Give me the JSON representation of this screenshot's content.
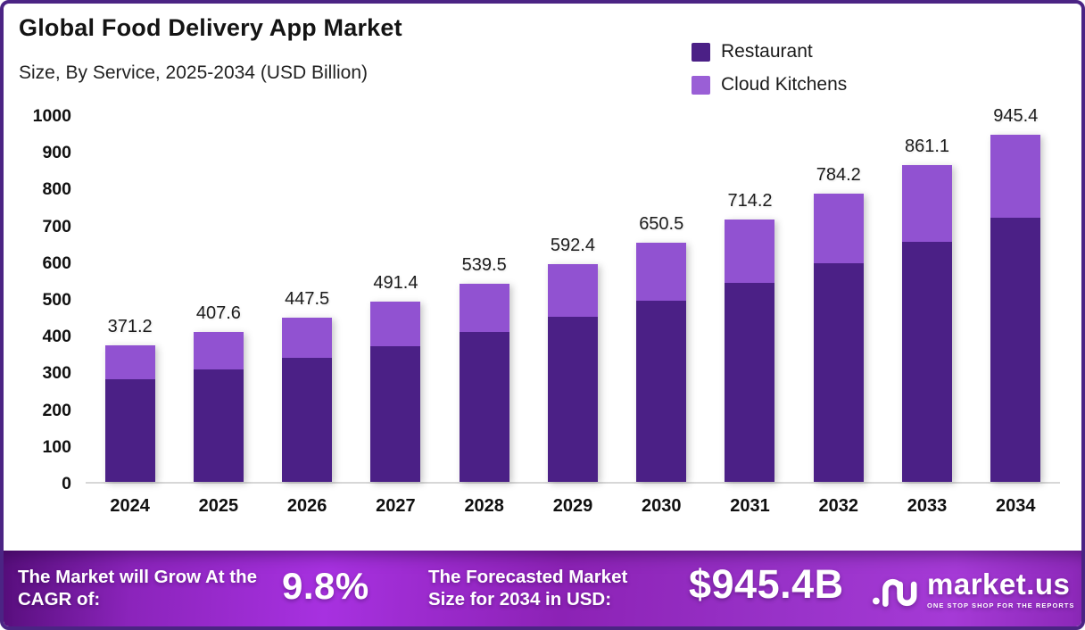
{
  "header": {
    "title": "Global Food Delivery App Market",
    "subtitle": "Size, By Service, 2025-2034 (USD Billion)"
  },
  "legend": {
    "items": [
      {
        "label": "Restaurant",
        "color": "#4b2086"
      },
      {
        "label": "Cloud Kitchens",
        "color": "#9a5fd6"
      }
    ]
  },
  "chart_data": {
    "type": "bar",
    "stacked": true,
    "title": "Global Food Delivery App Market Size, By Service, 2025-2034 (USD Billion)",
    "categories": [
      "2024",
      "2025",
      "2026",
      "2027",
      "2028",
      "2029",
      "2030",
      "2031",
      "2032",
      "2033",
      "2034"
    ],
    "series": [
      {
        "name": "Restaurant",
        "color": "#4b2086",
        "values": [
          279.0,
          306.0,
          337.0,
          369.0,
          408.0,
          449.0,
          493.0,
          541.0,
          595.0,
          653.0,
          718.0
        ],
        "note": "estimated from bar segment heights"
      },
      {
        "name": "Cloud Kitchens",
        "color": "#9152d1",
        "values": [
          92.2,
          101.6,
          110.5,
          122.4,
          131.5,
          143.4,
          157.5,
          173.2,
          189.2,
          208.1,
          227.4
        ],
        "note": "estimated from bar segment heights"
      }
    ],
    "totals": [
      371.2,
      407.6,
      447.5,
      491.4,
      539.5,
      592.4,
      650.5,
      714.2,
      784.2,
      861.1,
      945.4
    ],
    "total_labels": [
      "371.2",
      "407.6",
      "447.5",
      "491.4",
      "539.5",
      "592.4",
      "650.5",
      "714.2",
      "784.2",
      "861.1",
      "945.4"
    ],
    "xlabel": "",
    "ylabel": "",
    "ylim": [
      0,
      1000
    ],
    "y_ticks": [
      0,
      100,
      200,
      300,
      400,
      500,
      600,
      700,
      800,
      900,
      1000
    ],
    "grid": false,
    "legend_position": "top-right"
  },
  "banner": {
    "cagr_label": "The Market will Grow At the CAGR of:",
    "cagr_value": "9.8%",
    "forecast_label": "The Forecasted Market Size for 2034 in USD:",
    "forecast_value": "$945.4B",
    "brand": "market.us",
    "brand_tagline": "ONE STOP SHOP FOR THE REPORTS"
  },
  "colors": {
    "frame_border": "#4b2484",
    "restaurant_bar": "#4b2086",
    "cloud_kitchens_bar": "#9152d1",
    "axis_line": "#d7d7d7",
    "banner_text": "#ffffff"
  }
}
